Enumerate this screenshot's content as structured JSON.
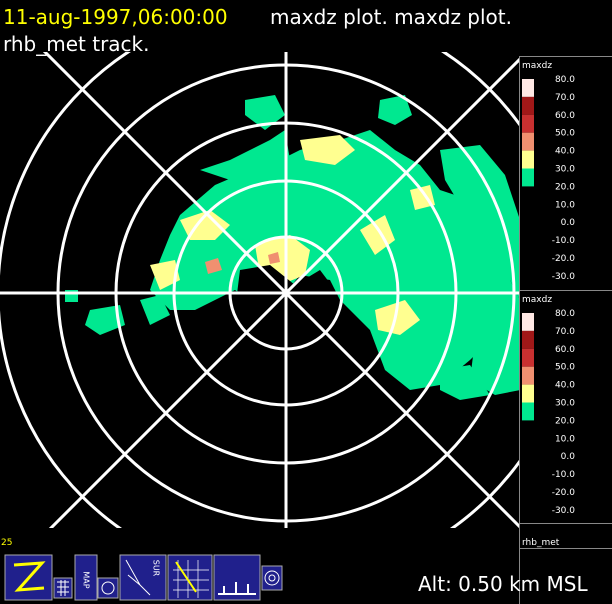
{
  "header": {
    "timestamp": "11-aug-1997,06:00:00",
    "title": "maxdz plot.  maxdz plot.",
    "subtitle": "rhb_met track."
  },
  "legends": [
    {
      "title": "maxdz",
      "labels": [
        "80.0",
        "70.0",
        "60.0",
        "50.0",
        "40.0",
        "30.0",
        "20.0",
        "10.0",
        "0.0",
        "-10.0",
        "-20.0",
        "-30.0"
      ]
    },
    {
      "title": "maxdz",
      "labels": [
        "80.0",
        "70.0",
        "60.0",
        "50.0",
        "40.0",
        "30.0",
        "20.0",
        "10.0",
        "0.0",
        "-10.0",
        "-20.0",
        "-30.0"
      ]
    }
  ],
  "platform": "rhb_met",
  "frame_number": "25",
  "altitude": "Alt: 0.50 km MSL",
  "toolbar": {
    "map_label": "MAP",
    "sur_label": "SUR"
  }
}
